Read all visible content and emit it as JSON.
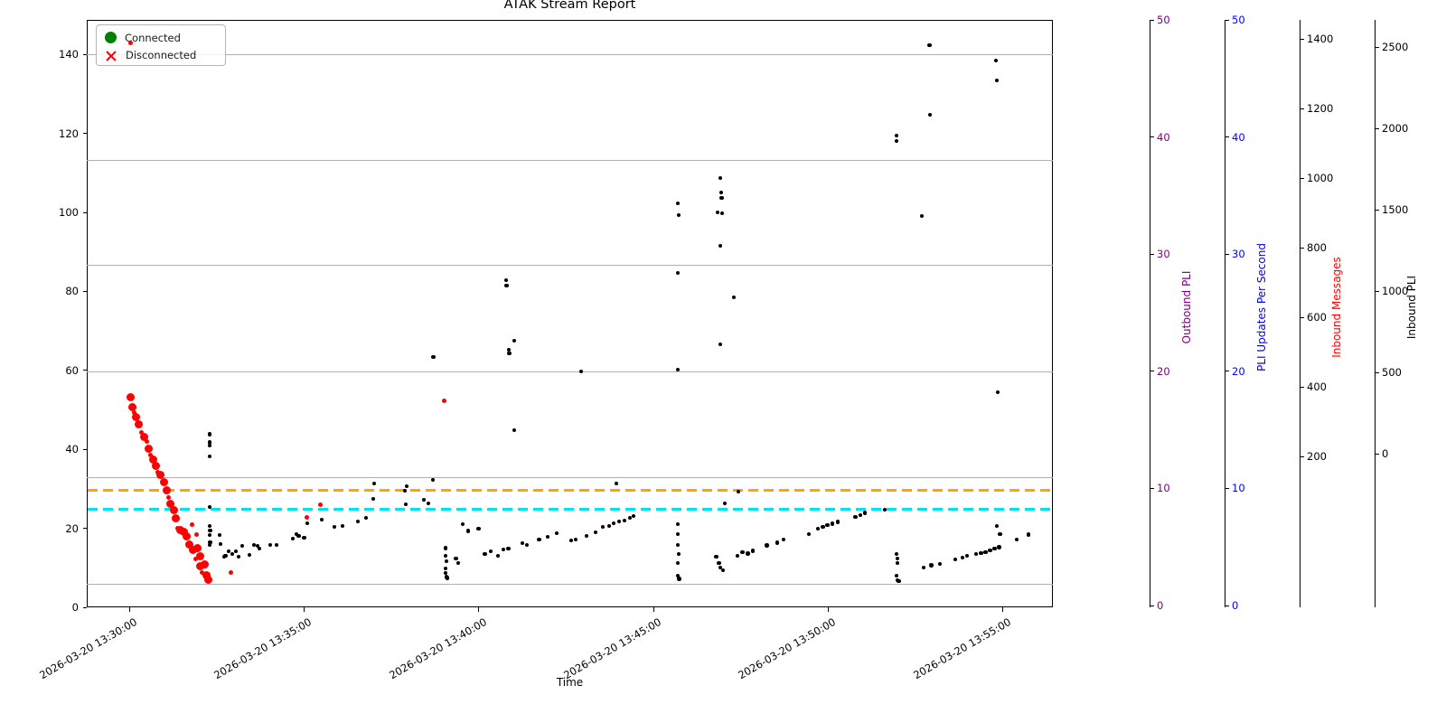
{
  "title": "ATAK Stream Report",
  "xlabel": "Time",
  "legend": {
    "items": [
      {
        "label": "Connected",
        "marker": "circle",
        "color": "#008000"
      },
      {
        "label": "Disconnected",
        "marker": "x",
        "color": "#ff0000"
      }
    ]
  },
  "colors": {
    "connected_points": "#000000",
    "disconnected_points": "#ff0000",
    "orange_line": "#ffa500",
    "cyan_line": "#00e1f2",
    "grid": "#b0b0b0"
  },
  "x_axis": {
    "tick_labels": [
      "2026-03-20 13:30:00",
      "2026-03-20 13:35:00",
      "2026-03-20 13:40:00",
      "2026-03-20 13:45:00",
      "2026-03-20 13:50:00",
      "2026-03-20 13:55:00"
    ],
    "tick_minutes": [
      0,
      5,
      10,
      15,
      20,
      25
    ]
  },
  "left_axis": {
    "tick_values": [
      0,
      20,
      40,
      60,
      80,
      100,
      120,
      140
    ]
  },
  "right_axes": [
    {
      "key": "outbound",
      "label": "Outbound PLI",
      "label_color": "#800080",
      "tick_color": "#800080",
      "tick_labels": [
        "50",
        "40",
        "30",
        "20",
        "10",
        "0"
      ]
    },
    {
      "key": "pli_ups",
      "label": "PLI Updates Per Second",
      "label_color": "#0000ff",
      "tick_color": "#0000ff",
      "tick_labels": [
        "50",
        "40",
        "30",
        "20",
        "10",
        "0"
      ]
    },
    {
      "key": "inbound_msgs",
      "label": "Inbound Messages",
      "label_color": "#ff0000",
      "tick_color": "#000000",
      "tick_labels": [
        "1400",
        "1200",
        "1000",
        "800",
        "600",
        "400",
        "200"
      ]
    },
    {
      "key": "inbound_pli",
      "label": "Inbound PLI",
      "label_color": "#000000",
      "tick_color": "#000000",
      "tick_labels": [
        "2500",
        "2000",
        "1500",
        "1000",
        "500",
        "0"
      ]
    }
  ],
  "hlines": [
    {
      "value": 29.6,
      "color": "#ffa500"
    },
    {
      "value": 24.8,
      "color": "#00e1f2"
    }
  ],
  "chart_data": {
    "type": "scatter",
    "title": "ATAK Stream Report",
    "xlabel": "Time",
    "x_unit": "minutes after 2026-03-20 13:30:00",
    "x_range_minutes": [
      -1.2,
      26.4
    ],
    "y_axis": "left axis units",
    "y_range": [
      0,
      148
    ],
    "grid": true,
    "legend_position": "upper left",
    "series": [
      {
        "name": "Connected",
        "color": "black",
        "points": [
          [
            2.3,
            43.8
          ],
          [
            2.3,
            41.8
          ],
          [
            2.3,
            41.0
          ],
          [
            2.3,
            38.2
          ],
          [
            2.3,
            25.4
          ],
          [
            2.3,
            20.6
          ],
          [
            2.31,
            19.4
          ],
          [
            2.3,
            18.3
          ],
          [
            2.31,
            16.5
          ],
          [
            2.3,
            15.8
          ],
          [
            2.59,
            18.3
          ],
          [
            2.61,
            16.0
          ],
          [
            2.72,
            12.8
          ],
          [
            2.75,
            13.0
          ],
          [
            2.84,
            14.2
          ],
          [
            2.95,
            13.5
          ],
          [
            3.05,
            14.2
          ],
          [
            3.13,
            12.8
          ],
          [
            3.23,
            15.6
          ],
          [
            3.44,
            13.3
          ],
          [
            3.57,
            15.8
          ],
          [
            3.67,
            15.6
          ],
          [
            3.72,
            14.9
          ],
          [
            4.03,
            15.8
          ],
          [
            4.21,
            15.8
          ],
          [
            4.68,
            17.4
          ],
          [
            4.78,
            18.5
          ],
          [
            4.85,
            18.1
          ],
          [
            5.0,
            17.6
          ],
          [
            5.1,
            21.3
          ],
          [
            5.51,
            22.2
          ],
          [
            5.87,
            20.4
          ],
          [
            6.1,
            20.6
          ],
          [
            6.54,
            21.7
          ],
          [
            6.78,
            22.7
          ],
          [
            6.98,
            27.5
          ],
          [
            7.01,
            31.3
          ],
          [
            7.89,
            29.5
          ],
          [
            7.94,
            30.7
          ],
          [
            7.91,
            26.1
          ],
          [
            8.43,
            27.2
          ],
          [
            8.56,
            26.3
          ],
          [
            8.69,
            32.3
          ],
          [
            8.7,
            63.4
          ],
          [
            9.05,
            15.0
          ],
          [
            9.05,
            13.0
          ],
          [
            9.07,
            11.6
          ],
          [
            9.05,
            9.8
          ],
          [
            9.05,
            8.7
          ],
          [
            9.07,
            7.7
          ],
          [
            9.1,
            7.4
          ],
          [
            9.35,
            12.4
          ],
          [
            9.42,
            11.2
          ],
          [
            9.55,
            21.1
          ],
          [
            9.7,
            19.3
          ],
          [
            10.0,
            19.9
          ],
          [
            10.18,
            13.5
          ],
          [
            10.35,
            14.2
          ],
          [
            10.55,
            13.0
          ],
          [
            10.7,
            14.6
          ],
          [
            10.85,
            14.9
          ],
          [
            11.25,
            16.2
          ],
          [
            11.38,
            15.8
          ],
          [
            11.73,
            17.2
          ],
          [
            11.97,
            17.8
          ],
          [
            12.23,
            18.8
          ],
          [
            10.78,
            82.8
          ],
          [
            10.8,
            81.5
          ],
          [
            10.86,
            65.2
          ],
          [
            10.88,
            64.3
          ],
          [
            11.02,
            67.5
          ],
          [
            11.02,
            44.9
          ],
          [
            12.93,
            59.7
          ],
          [
            12.65,
            16.9
          ],
          [
            12.78,
            17.2
          ],
          [
            13.09,
            18.1
          ],
          [
            13.34,
            19.0
          ],
          [
            13.55,
            20.4
          ],
          [
            13.73,
            20.6
          ],
          [
            13.86,
            21.3
          ],
          [
            14.02,
            21.7
          ],
          [
            14.17,
            22.0
          ],
          [
            14.33,
            22.7
          ],
          [
            14.43,
            23.1
          ],
          [
            13.94,
            31.3
          ],
          [
            15.7,
            102.3
          ],
          [
            15.72,
            99.3
          ],
          [
            15.7,
            84.7
          ],
          [
            15.7,
            60.2
          ],
          [
            15.7,
            21.1
          ],
          [
            15.7,
            18.5
          ],
          [
            15.7,
            15.8
          ],
          [
            15.72,
            13.5
          ],
          [
            15.7,
            11.2
          ],
          [
            15.7,
            8.0
          ],
          [
            15.74,
            7.2
          ],
          [
            16.92,
            108.7
          ],
          [
            16.94,
            105.0
          ],
          [
            16.95,
            103.7
          ],
          [
            16.84,
            100.0
          ],
          [
            16.97,
            99.8
          ],
          [
            16.92,
            91.5
          ],
          [
            16.92,
            66.6
          ],
          [
            16.8,
            12.8
          ],
          [
            16.88,
            11.2
          ],
          [
            16.92,
            10.0
          ],
          [
            16.99,
            9.4
          ],
          [
            17.05,
            26.3
          ],
          [
            17.3,
            78.5
          ],
          [
            17.43,
            29.3
          ],
          [
            17.4,
            13.0
          ],
          [
            17.55,
            13.9
          ],
          [
            17.7,
            13.6
          ],
          [
            17.85,
            14.3
          ],
          [
            18.25,
            15.7
          ],
          [
            18.55,
            16.4
          ],
          [
            18.73,
            17.1
          ],
          [
            19.45,
            18.6
          ],
          [
            19.7,
            19.9
          ],
          [
            19.85,
            20.3
          ],
          [
            19.98,
            20.8
          ],
          [
            20.12,
            21.2
          ],
          [
            20.27,
            21.6
          ],
          [
            20.78,
            22.9
          ],
          [
            20.93,
            23.4
          ],
          [
            21.05,
            23.9
          ],
          [
            21.62,
            24.7
          ],
          [
            21.96,
            119.4
          ],
          [
            21.96,
            118.1
          ],
          [
            21.96,
            13.5
          ],
          [
            21.98,
            12.4
          ],
          [
            21.98,
            11.2
          ],
          [
            21.96,
            8.0
          ],
          [
            21.98,
            6.9
          ],
          [
            22.02,
            6.6
          ],
          [
            22.68,
            99.1
          ],
          [
            22.74,
            10.1
          ],
          [
            22.95,
            10.6
          ],
          [
            23.2,
            11.0
          ],
          [
            23.64,
            12.1
          ],
          [
            23.85,
            12.6
          ],
          [
            23.98,
            13.0
          ],
          [
            24.24,
            13.5
          ],
          [
            24.37,
            13.7
          ],
          [
            24.5,
            14.0
          ],
          [
            24.63,
            14.4
          ],
          [
            24.76,
            14.9
          ],
          [
            24.89,
            15.2
          ],
          [
            24.83,
            20.6
          ],
          [
            24.92,
            18.5
          ],
          [
            25.4,
            17.2
          ],
          [
            25.73,
            18.4
          ],
          [
            22.9,
            142.3
          ],
          [
            22.92,
            124.7
          ],
          [
            24.8,
            138.4
          ],
          [
            24.82,
            133.4
          ],
          [
            24.85,
            54.5
          ]
        ]
      },
      {
        "name": "Disconnected",
        "color": "red",
        "points": [
          [
            0.03,
            53.2,
            4.5
          ],
          [
            0.09,
            50.6,
            4.5
          ],
          [
            0.14,
            49.4,
            2.5
          ],
          [
            0.2,
            48.2,
            4.5
          ],
          [
            0.28,
            46.4,
            4.5
          ],
          [
            0.36,
            44.3,
            2.5
          ],
          [
            0.42,
            43.2,
            4.5
          ],
          [
            0.5,
            41.9,
            2.5
          ],
          [
            0.56,
            40.1,
            4.5
          ],
          [
            0.62,
            38.6,
            2.5
          ],
          [
            0.68,
            37.3,
            4.5
          ],
          [
            0.76,
            35.7,
            4.5
          ],
          [
            0.82,
            34.2,
            2.5
          ],
          [
            0.9,
            33.6,
            4.5
          ],
          [
            0.99,
            31.6,
            4.5
          ],
          [
            1.07,
            29.6,
            4.5
          ],
          [
            1.12,
            27.9,
            2.5
          ],
          [
            1.18,
            26.2,
            4.5
          ],
          [
            1.27,
            24.6,
            4.5
          ],
          [
            1.34,
            22.5,
            4.5
          ],
          [
            1.38,
            20.1,
            2.5
          ],
          [
            1.46,
            19.6,
            4.5
          ],
          [
            1.56,
            19.1,
            4.5
          ],
          [
            1.63,
            17.9,
            4.5
          ],
          [
            1.72,
            15.9,
            4.5
          ],
          [
            1.8,
            21.0,
            2.5
          ],
          [
            1.92,
            18.5,
            2.5
          ],
          [
            1.83,
            14.6,
            4.5
          ],
          [
            1.94,
            14.9,
            4.5
          ],
          [
            1.91,
            12.3,
            2.5
          ],
          [
            2.03,
            13.0,
            4.5
          ],
          [
            2.03,
            10.3,
            4.5
          ],
          [
            2.16,
            10.8,
            4.5
          ],
          [
            2.09,
            8.8,
            2.5
          ],
          [
            2.22,
            8.2,
            4.5
          ],
          [
            2.27,
            7.0,
            4.5
          ],
          [
            2.92,
            8.9,
            2.5
          ],
          [
            5.07,
            22.7,
            2.5
          ],
          [
            5.48,
            25.9,
            2.5
          ],
          [
            9.0,
            52.4,
            2.5
          ],
          [
            0.05,
            142.8,
            2.5
          ]
        ]
      }
    ],
    "hlines": [
      {
        "value": 29.6,
        "style": "dashed",
        "color": "orange"
      },
      {
        "value": 24.8,
        "style": "dashed",
        "color": "cyan"
      }
    ]
  }
}
